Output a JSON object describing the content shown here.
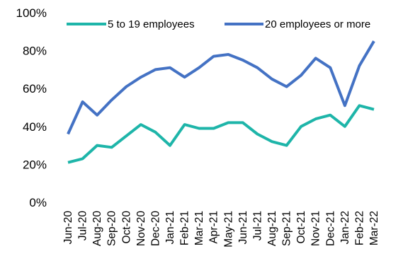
{
  "chart_data": {
    "type": "line",
    "title": "",
    "xlabel": "",
    "ylabel": "",
    "ylim": [
      0,
      100
    ],
    "yticks": [
      "0%",
      "20%",
      "40%",
      "60%",
      "80%",
      "100%"
    ],
    "ytick_values": [
      0,
      20,
      40,
      60,
      80,
      100
    ],
    "categories": [
      "Jun-20",
      "Jul-20",
      "Aug-20",
      "Sep-20",
      "Oct-20",
      "Nov-20",
      "Dec-20",
      "Jan-21",
      "Feb-21",
      "Mar-21",
      "Apr-21",
      "May-21",
      "Jun-21",
      "Jul-21",
      "Aug-21",
      "Sep-21",
      "Oct-21",
      "Nov-21",
      "Dec-21",
      "Jan-22",
      "Feb-22",
      "Mar-22"
    ],
    "series": [
      {
        "name": "5 to 19 employees",
        "color": "#1eb5a9",
        "values": [
          21,
          23,
          30,
          29,
          35,
          41,
          37,
          30,
          41,
          39,
          39,
          42,
          42,
          36,
          32,
          30,
          40,
          44,
          46,
          40,
          51,
          49
        ]
      },
      {
        "name": "20 employees or more",
        "color": "#4472c4",
        "values": [
          36,
          53,
          46,
          54,
          61,
          66,
          70,
          71,
          66,
          71,
          77,
          78,
          75,
          71,
          65,
          61,
          67,
          76,
          71,
          51,
          72,
          85
        ]
      }
    ],
    "grid": false,
    "legend_position": "top"
  }
}
